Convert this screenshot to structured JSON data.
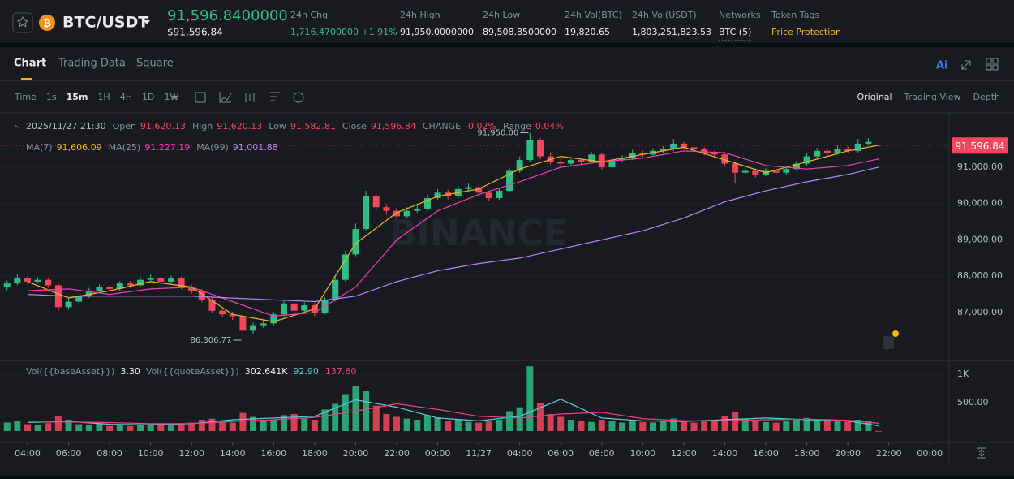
{
  "header": {
    "symbol": "BTC/USDT",
    "price": "91,596.8400000",
    "price_usd": "$91,596.84",
    "stats": [
      {
        "label": "24h Chg",
        "value": "1,716.4700000 +1.91%"
      },
      {
        "label": "24h High",
        "value": "91,950.0000000"
      },
      {
        "label": "24h Low",
        "value": "89,508.8500000"
      },
      {
        "label": "24h Vol(BTC)",
        "value": "19,820.65"
      },
      {
        "label": "24h Vol(USDT)",
        "value": "1,803,251,823.53"
      },
      {
        "label": "Networks",
        "value": "BTC (5)"
      },
      {
        "label": "Token Tags",
        "value": "Price Protection"
      }
    ]
  },
  "tabs": [
    "Chart",
    "Trading Data",
    "Square"
  ],
  "toolbar": {
    "intervals": [
      "Time",
      "1s",
      "15m",
      "1H",
      "4H",
      "1D",
      "1W"
    ],
    "views": [
      "Original",
      "Trading View",
      "Depth"
    ]
  },
  "chart_data": {
    "type": "candlestick",
    "ohlc_legend": [
      "2025/11/27 21:30",
      "Open",
      "91,620.13",
      "High",
      "91,620.13",
      "Low",
      "91,582.81",
      "Close",
      "91,596.84",
      "CHANGE",
      "-0.02%",
      "Range",
      "0.04%"
    ],
    "watermark": "BINANCE",
    "up_color": "#2ebd85",
    "down_color": "#f6465d",
    "ylim": [
      85770,
      92475
    ],
    "yticks": [
      {
        "value": 87000,
        "label": "87,000.00"
      },
      {
        "value": 88000,
        "label": "88,000.00"
      },
      {
        "value": 89000,
        "label": "89,000.00"
      },
      {
        "value": 90000,
        "label": "90,000.00"
      },
      {
        "value": 91000,
        "label": "91,000.00"
      }
    ],
    "xlim": [
      2.655,
      48.94
    ],
    "xticks": [
      {
        "value": 4,
        "label": "04:00"
      },
      {
        "value": 6,
        "label": "06:00"
      },
      {
        "value": 8,
        "label": "08:00"
      },
      {
        "value": 10,
        "label": "10:00"
      },
      {
        "value": 12,
        "label": "12:00"
      },
      {
        "value": 14,
        "label": "14:00"
      },
      {
        "value": 16,
        "label": "16:00"
      },
      {
        "value": 18,
        "label": "18:00"
      },
      {
        "value": 20,
        "label": "20:00"
      },
      {
        "value": 22,
        "label": "22:00"
      },
      {
        "value": 24,
        "label": "00:00"
      },
      {
        "value": 26,
        "label": "11/27"
      },
      {
        "value": 28,
        "label": "04:00"
      },
      {
        "value": 30,
        "label": "06:00"
      },
      {
        "value": 32,
        "label": "08:00"
      },
      {
        "value": 34,
        "label": "10:00"
      },
      {
        "value": 36,
        "label": "12:00"
      },
      {
        "value": 38,
        "label": "14:00"
      },
      {
        "value": 40,
        "label": "16:00"
      },
      {
        "value": 42,
        "label": "18:00"
      },
      {
        "value": 44,
        "label": "20:00"
      },
      {
        "value": 46,
        "label": "22:00"
      },
      {
        "value": 48,
        "label": "00:00"
      }
    ],
    "current_price": {
      "value": 91596.84,
      "label": "91,596.84"
    },
    "annotations": [
      {
        "label": "91,950.00",
        "value": 91950,
        "x": 28.5
      },
      {
        "label": "86,306.77",
        "value": 86306.77,
        "x": 14.5
      }
    ],
    "candles": {
      "x": [
        3,
        3.5,
        4,
        4.5,
        5,
        5.5,
        6,
        6.5,
        7,
        7.5,
        8,
        8.5,
        9,
        9.5,
        10,
        10.5,
        11,
        11.5,
        12,
        12.5,
        13,
        13.5,
        14,
        14.5,
        15,
        15.5,
        16,
        16.5,
        17,
        17.5,
        18,
        18.5,
        19,
        19.5,
        20,
        20.5,
        21,
        21.5,
        22,
        22.5,
        23,
        23.5,
        24,
        24.5,
        25,
        25.5,
        26,
        26.5,
        27,
        27.5,
        28,
        28.5,
        29,
        29.5,
        30,
        30.5,
        31,
        31.5,
        32,
        32.5,
        33,
        33.5,
        34,
        34.5,
        35,
        35.5,
        36,
        36.5,
        37,
        37.5,
        38,
        38.5,
        39,
        39.5,
        40,
        40.5,
        41,
        41.5,
        42,
        42.5,
        43,
        43.5,
        44,
        44.5,
        45,
        45.5
      ],
      "open": [
        87700,
        87800,
        87950,
        87850,
        87900,
        87750,
        87150,
        87300,
        87450,
        87600,
        87700,
        87650,
        87800,
        87750,
        87900,
        87950,
        87850,
        87950,
        87700,
        87600,
        87350,
        87050,
        86950,
        86900,
        86500,
        86650,
        86700,
        86950,
        87250,
        87050,
        87200,
        87000,
        87350,
        87900,
        88600,
        89300,
        90200,
        89900,
        89800,
        89650,
        89800,
        89850,
        90150,
        90300,
        90200,
        90400,
        90450,
        90300,
        90150,
        90350,
        90900,
        91200,
        91750,
        91300,
        91150,
        91100,
        91200,
        91150,
        91350,
        91000,
        91200,
        91250,
        91400,
        91350,
        91450,
        91500,
        91650,
        91550,
        91500,
        91400,
        91350,
        91100,
        90850,
        90900,
        90800,
        90900,
        90850,
        90950,
        91100,
        91300,
        91450,
        91400,
        91500,
        91450,
        91650,
        91620.13
      ],
      "high": [
        87880,
        88050,
        88000,
        87980,
        87960,
        87800,
        87380,
        87520,
        87680,
        87780,
        87760,
        87870,
        87860,
        87980,
        88050,
        88000,
        88020,
        87990,
        87760,
        87650,
        87400,
        87100,
        87020,
        86960,
        86720,
        86800,
        87020,
        87330,
        87300,
        87280,
        87260,
        87420,
        87980,
        88700,
        89450,
        90350,
        90280,
        89980,
        89880,
        89900,
        89950,
        90250,
        90400,
        90380,
        90480,
        90550,
        90500,
        90360,
        90420,
        90980,
        91300,
        91950,
        91800,
        91380,
        91230,
        91280,
        91260,
        91420,
        91400,
        91280,
        91330,
        91480,
        91460,
        91530,
        91580,
        91780,
        91700,
        91620,
        91560,
        91460,
        91400,
        91150,
        90980,
        90960,
        90980,
        90950,
        91030,
        91180,
        91380,
        91530,
        91520,
        91600,
        91580,
        91780,
        91800,
        91620.13
      ],
      "low": [
        87620,
        87750,
        87780,
        87800,
        87680,
        87050,
        87080,
        87250,
        87400,
        87550,
        87580,
        87600,
        87680,
        87700,
        87850,
        87780,
        87800,
        87640,
        87520,
        87280,
        86980,
        86880,
        86800,
        86306.77,
        86420,
        86580,
        86650,
        86900,
        86980,
        86990,
        86900,
        86950,
        87300,
        87850,
        88550,
        89250,
        89800,
        89700,
        89580,
        89600,
        89750,
        89800,
        90100,
        90120,
        90150,
        90350,
        90220,
        90080,
        90100,
        90300,
        90850,
        91150,
        91220,
        91080,
        91020,
        91050,
        91080,
        91100,
        90920,
        90950,
        91150,
        91200,
        91280,
        91300,
        91400,
        91450,
        91480,
        91430,
        91330,
        91270,
        91020,
        90550,
        90780,
        90720,
        90750,
        90770,
        90800,
        90900,
        91050,
        91250,
        91330,
        91350,
        91380,
        91400,
        91600,
        91582.81
      ],
      "close": [
        87800,
        87950,
        87850,
        87900,
        87750,
        87150,
        87300,
        87450,
        87600,
        87700,
        87650,
        87800,
        87750,
        87900,
        87950,
        87850,
        87950,
        87700,
        87600,
        87350,
        87050,
        86950,
        86900,
        86500,
        86650,
        86700,
        86950,
        87250,
        87050,
        87200,
        87000,
        87350,
        87900,
        88600,
        89300,
        90200,
        89900,
        89800,
        89650,
        89800,
        89850,
        90150,
        90300,
        90200,
        90400,
        90450,
        90300,
        90150,
        90350,
        90900,
        91200,
        91750,
        91300,
        91150,
        91100,
        91200,
        91150,
        91350,
        91000,
        91200,
        91250,
        91400,
        91350,
        91450,
        91500,
        91650,
        91550,
        91500,
        91400,
        91350,
        91100,
        90850,
        90900,
        90800,
        90900,
        90850,
        90950,
        91100,
        91300,
        91450,
        91400,
        91500,
        91450,
        91650,
        91700,
        91596.84
      ],
      "volume": [
        150,
        180,
        120,
        100,
        140,
        260,
        200,
        120,
        110,
        130,
        90,
        100,
        90,
        110,
        120,
        100,
        110,
        140,
        150,
        200,
        220,
        160,
        150,
        320,
        250,
        180,
        200,
        280,
        300,
        220,
        200,
        380,
        480,
        650,
        800,
        700,
        450,
        300,
        250,
        220,
        200,
        280,
        240,
        180,
        200,
        160,
        150,
        180,
        200,
        350,
        420,
        1140,
        500,
        300,
        250,
        200,
        180,
        160,
        200,
        180,
        150,
        170,
        160,
        150,
        180,
        220,
        160,
        150,
        170,
        200,
        260,
        330,
        220,
        180,
        160,
        150,
        170,
        200,
        230,
        210,
        180,
        190,
        170,
        200,
        180,
        3.3
      ]
    },
    "ma_lines": [
      {
        "name": "MA(7)",
        "color": "#f0b90b",
        "value_label": "91,606.09",
        "x": [
          4,
          6,
          8,
          10,
          12,
          14,
          16,
          18,
          20,
          22,
          24,
          26,
          28,
          30,
          32,
          34,
          36,
          38,
          40,
          42,
          44,
          45.5
        ],
        "values": [
          87850,
          87400,
          87600,
          87850,
          87700,
          86950,
          86750,
          87100,
          88900,
          89750,
          90200,
          90400,
          90950,
          91300,
          91150,
          91350,
          91550,
          91200,
          90850,
          91150,
          91450,
          91606.09
        ]
      },
      {
        "name": "MA(25)",
        "color": "#eb40b5",
        "value_label": "91,227.19",
        "x": [
          4,
          6,
          8,
          10,
          12,
          14,
          16,
          18,
          20,
          22,
          24,
          26,
          28,
          30,
          32,
          34,
          36,
          38,
          40,
          42,
          44,
          45.5
        ],
        "values": [
          87600,
          87650,
          87500,
          87650,
          87700,
          87300,
          86900,
          87000,
          87700,
          89000,
          89800,
          90250,
          90600,
          91000,
          91150,
          91250,
          91450,
          91400,
          91050,
          90950,
          91050,
          91227.19
        ]
      },
      {
        "name": "MA(99)",
        "color": "#b385f8",
        "value_label": "91,001.88",
        "x": [
          4,
          6,
          8,
          10,
          12,
          14,
          16,
          18,
          20,
          22,
          24,
          26,
          28,
          30,
          32,
          34,
          36,
          38,
          40,
          42,
          44,
          45.5
        ],
        "values": [
          87500,
          87450,
          87450,
          87450,
          87450,
          87400,
          87350,
          87300,
          87450,
          87850,
          88150,
          88350,
          88500,
          88750,
          89000,
          89250,
          89600,
          90050,
          90350,
          90600,
          90800,
          91001.88
        ]
      }
    ],
    "volume_pane": {
      "ylim": [
        0,
        1186
      ],
      "yticks": [
        {
          "value": 500,
          "label": "500.00"
        },
        {
          "value": 1000,
          "label": "1K"
        }
      ],
      "base_label": "Vol({{baseAsset}})",
      "base_value": {
        "value": 3.3,
        "label": "3.30"
      },
      "quote_label": "Vol({{quoteAsset}})",
      "quote_value": {
        "value": 302641,
        "label": "302.641K"
      },
      "ma_lines": [
        {
          "color": "#5ac8dc",
          "value_label": "92.90",
          "x": [
            4,
            6,
            8,
            10,
            12,
            14,
            16,
            18,
            20,
            22,
            24,
            26,
            28,
            30,
            32,
            34,
            36,
            38,
            40,
            42,
            44,
            45.5
          ],
          "values": [
            150,
            170,
            120,
            110,
            130,
            200,
            230,
            260,
            550,
            420,
            230,
            180,
            260,
            560,
            230,
            180,
            170,
            200,
            230,
            200,
            180,
            92.9
          ]
        },
        {
          "color": "#e9447f",
          "value_label": "137.60",
          "x": [
            4,
            6,
            8,
            10,
            12,
            14,
            16,
            18,
            20,
            22,
            24,
            26,
            28,
            30,
            32,
            34,
            36,
            38,
            40,
            42,
            44,
            45.5
          ],
          "values": [
            160,
            160,
            150,
            130,
            130,
            170,
            200,
            240,
            350,
            480,
            380,
            260,
            230,
            300,
            330,
            220,
            180,
            180,
            200,
            210,
            190,
            137.6
          ]
        }
      ]
    }
  }
}
